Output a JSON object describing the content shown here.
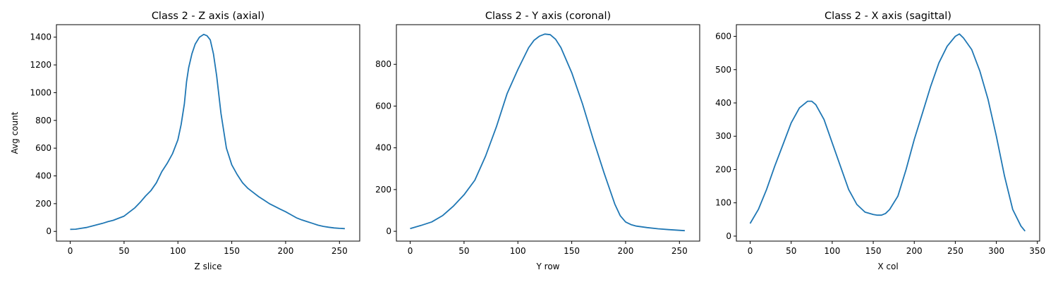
{
  "chart_data": [
    {
      "type": "line",
      "title": "Class 2 - Z axis (axial)",
      "xlabel": "Z slice",
      "ylabel": "Avg count",
      "xlim": [
        -12.8,
        268.8
      ],
      "ylim": [
        -70,
        1490
      ],
      "xticks": [
        0,
        50,
        100,
        150,
        200,
        250
      ],
      "yticks": [
        0,
        200,
        400,
        600,
        800,
        1000,
        1200,
        1400
      ],
      "grid": false,
      "series": [
        {
          "color": "#1f77b4",
          "x": [
            0,
            5,
            10,
            15,
            20,
            25,
            30,
            35,
            40,
            45,
            50,
            55,
            60,
            65,
            70,
            75,
            80,
            85,
            90,
            95,
            100,
            103,
            106,
            108,
            110,
            113,
            116,
            120,
            124,
            127,
            130,
            133,
            136,
            140,
            145,
            150,
            155,
            160,
            165,
            170,
            175,
            180,
            185,
            190,
            195,
            200,
            205,
            210,
            215,
            220,
            225,
            230,
            235,
            240,
            245,
            250,
            255
          ],
          "y": [
            15,
            16,
            22,
            28,
            38,
            48,
            58,
            70,
            80,
            95,
            110,
            140,
            170,
            210,
            255,
            295,
            350,
            430,
            490,
            560,
            660,
            770,
            920,
            1080,
            1180,
            1280,
            1350,
            1400,
            1420,
            1410,
            1380,
            1280,
            1120,
            850,
            600,
            480,
            410,
            350,
            310,
            280,
            250,
            225,
            200,
            180,
            160,
            142,
            120,
            98,
            83,
            70,
            58,
            45,
            36,
            30,
            25,
            22,
            20
          ]
        }
      ]
    },
    {
      "type": "line",
      "title": "Class 2 - Y axis (coronal)",
      "xlabel": "Y row",
      "ylabel": "",
      "xlim": [
        -12.8,
        268.8
      ],
      "ylim": [
        -47,
        990
      ],
      "xticks": [
        0,
        50,
        100,
        150,
        200,
        250
      ],
      "yticks": [
        0,
        200,
        400,
        600,
        800
      ],
      "grid": false,
      "series": [
        {
          "color": "#1f77b4",
          "x": [
            0,
            10,
            20,
            30,
            40,
            50,
            60,
            70,
            80,
            90,
            100,
            110,
            115,
            120,
            125,
            130,
            135,
            140,
            150,
            160,
            170,
            180,
            190,
            195,
            200,
            205,
            210,
            220,
            230,
            240,
            255
          ],
          "y": [
            13,
            28,
            45,
            75,
            120,
            175,
            245,
            360,
            500,
            660,
            775,
            880,
            915,
            935,
            945,
            942,
            920,
            880,
            760,
            610,
            440,
            280,
            130,
            75,
            45,
            32,
            25,
            18,
            12,
            8,
            3
          ]
        }
      ]
    },
    {
      "type": "line",
      "title": "Class 2 - X axis (sagittal)",
      "xlabel": "X col",
      "ylabel": "",
      "xlim": [
        -16.8,
        352.8
      ],
      "ylim": [
        -15,
        635
      ],
      "xticks": [
        0,
        50,
        100,
        150,
        200,
        250,
        300,
        350
      ],
      "yticks": [
        0,
        100,
        200,
        300,
        400,
        500,
        600
      ],
      "grid": false,
      "series": [
        {
          "color": "#1f77b4",
          "x": [
            0,
            10,
            20,
            30,
            40,
            50,
            60,
            70,
            75,
            80,
            90,
            100,
            110,
            120,
            130,
            140,
            150,
            155,
            160,
            165,
            170,
            180,
            190,
            200,
            210,
            220,
            230,
            240,
            250,
            255,
            260,
            270,
            280,
            290,
            300,
            310,
            320,
            330,
            335
          ],
          "y": [
            38,
            80,
            140,
            210,
            275,
            340,
            385,
            405,
            405,
            395,
            350,
            280,
            210,
            140,
            95,
            72,
            65,
            63,
            63,
            68,
            80,
            120,
            200,
            290,
            370,
            450,
            520,
            570,
            600,
            607,
            595,
            560,
            495,
            410,
            300,
            180,
            80,
            30,
            15
          ]
        }
      ]
    }
  ]
}
